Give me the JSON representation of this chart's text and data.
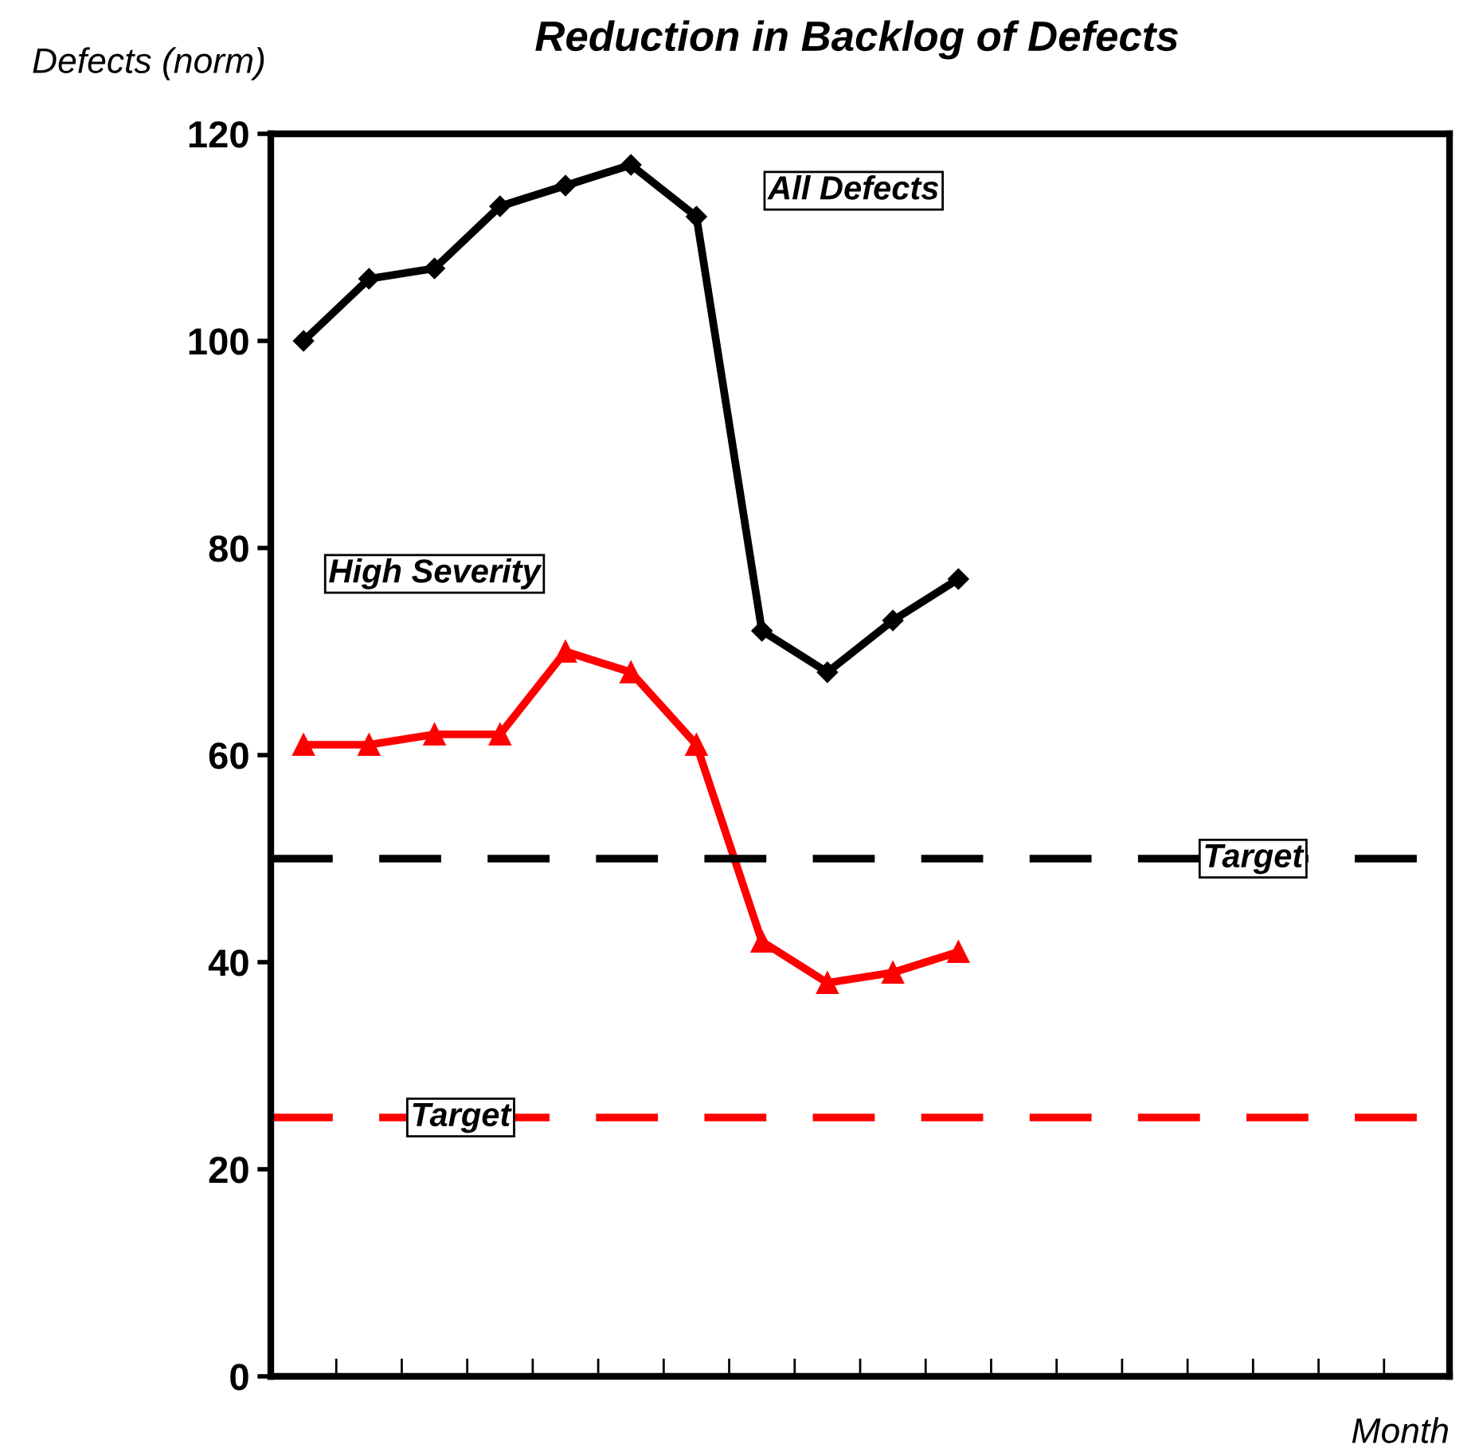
{
  "chart_data": {
    "type": "line",
    "title": "Reduction in Backlog of Defects",
    "ylabel": "Defects (norm)",
    "xlabel": "Month",
    "categories": [
      null,
      null,
      null,
      null,
      null,
      null,
      null,
      null,
      null,
      null,
      null,
      null,
      null,
      null,
      null,
      null,
      null,
      null
    ],
    "series": [
      {
        "name": "All Defects",
        "color": "#000000",
        "marker": "diamond",
        "values": [
          100,
          106,
          107,
          113,
          115,
          117,
          112,
          72,
          68,
          73,
          77,
          null,
          null,
          null,
          null,
          null,
          null,
          null
        ]
      },
      {
        "name": "High Severity",
        "color": "#ff0000",
        "marker": "triangle",
        "values": [
          61,
          61,
          62,
          62,
          70,
          68,
          61,
          42,
          38,
          39,
          41,
          null,
          null,
          null,
          null,
          null,
          null,
          null
        ]
      }
    ],
    "ref_lines": [
      {
        "axis": "y",
        "value": 50,
        "label": "Target",
        "color": "#000000",
        "line_style": "dashed"
      },
      {
        "axis": "y",
        "value": 25,
        "label": "Target",
        "color": "#ff0000",
        "line_style": "dashed"
      }
    ],
    "ylim": [
      0,
      120
    ],
    "yticks": [
      0,
      20,
      40,
      60,
      80,
      100,
      120
    ],
    "tick_labels": "y",
    "grid": false,
    "legend": false,
    "line_style": "solid"
  }
}
